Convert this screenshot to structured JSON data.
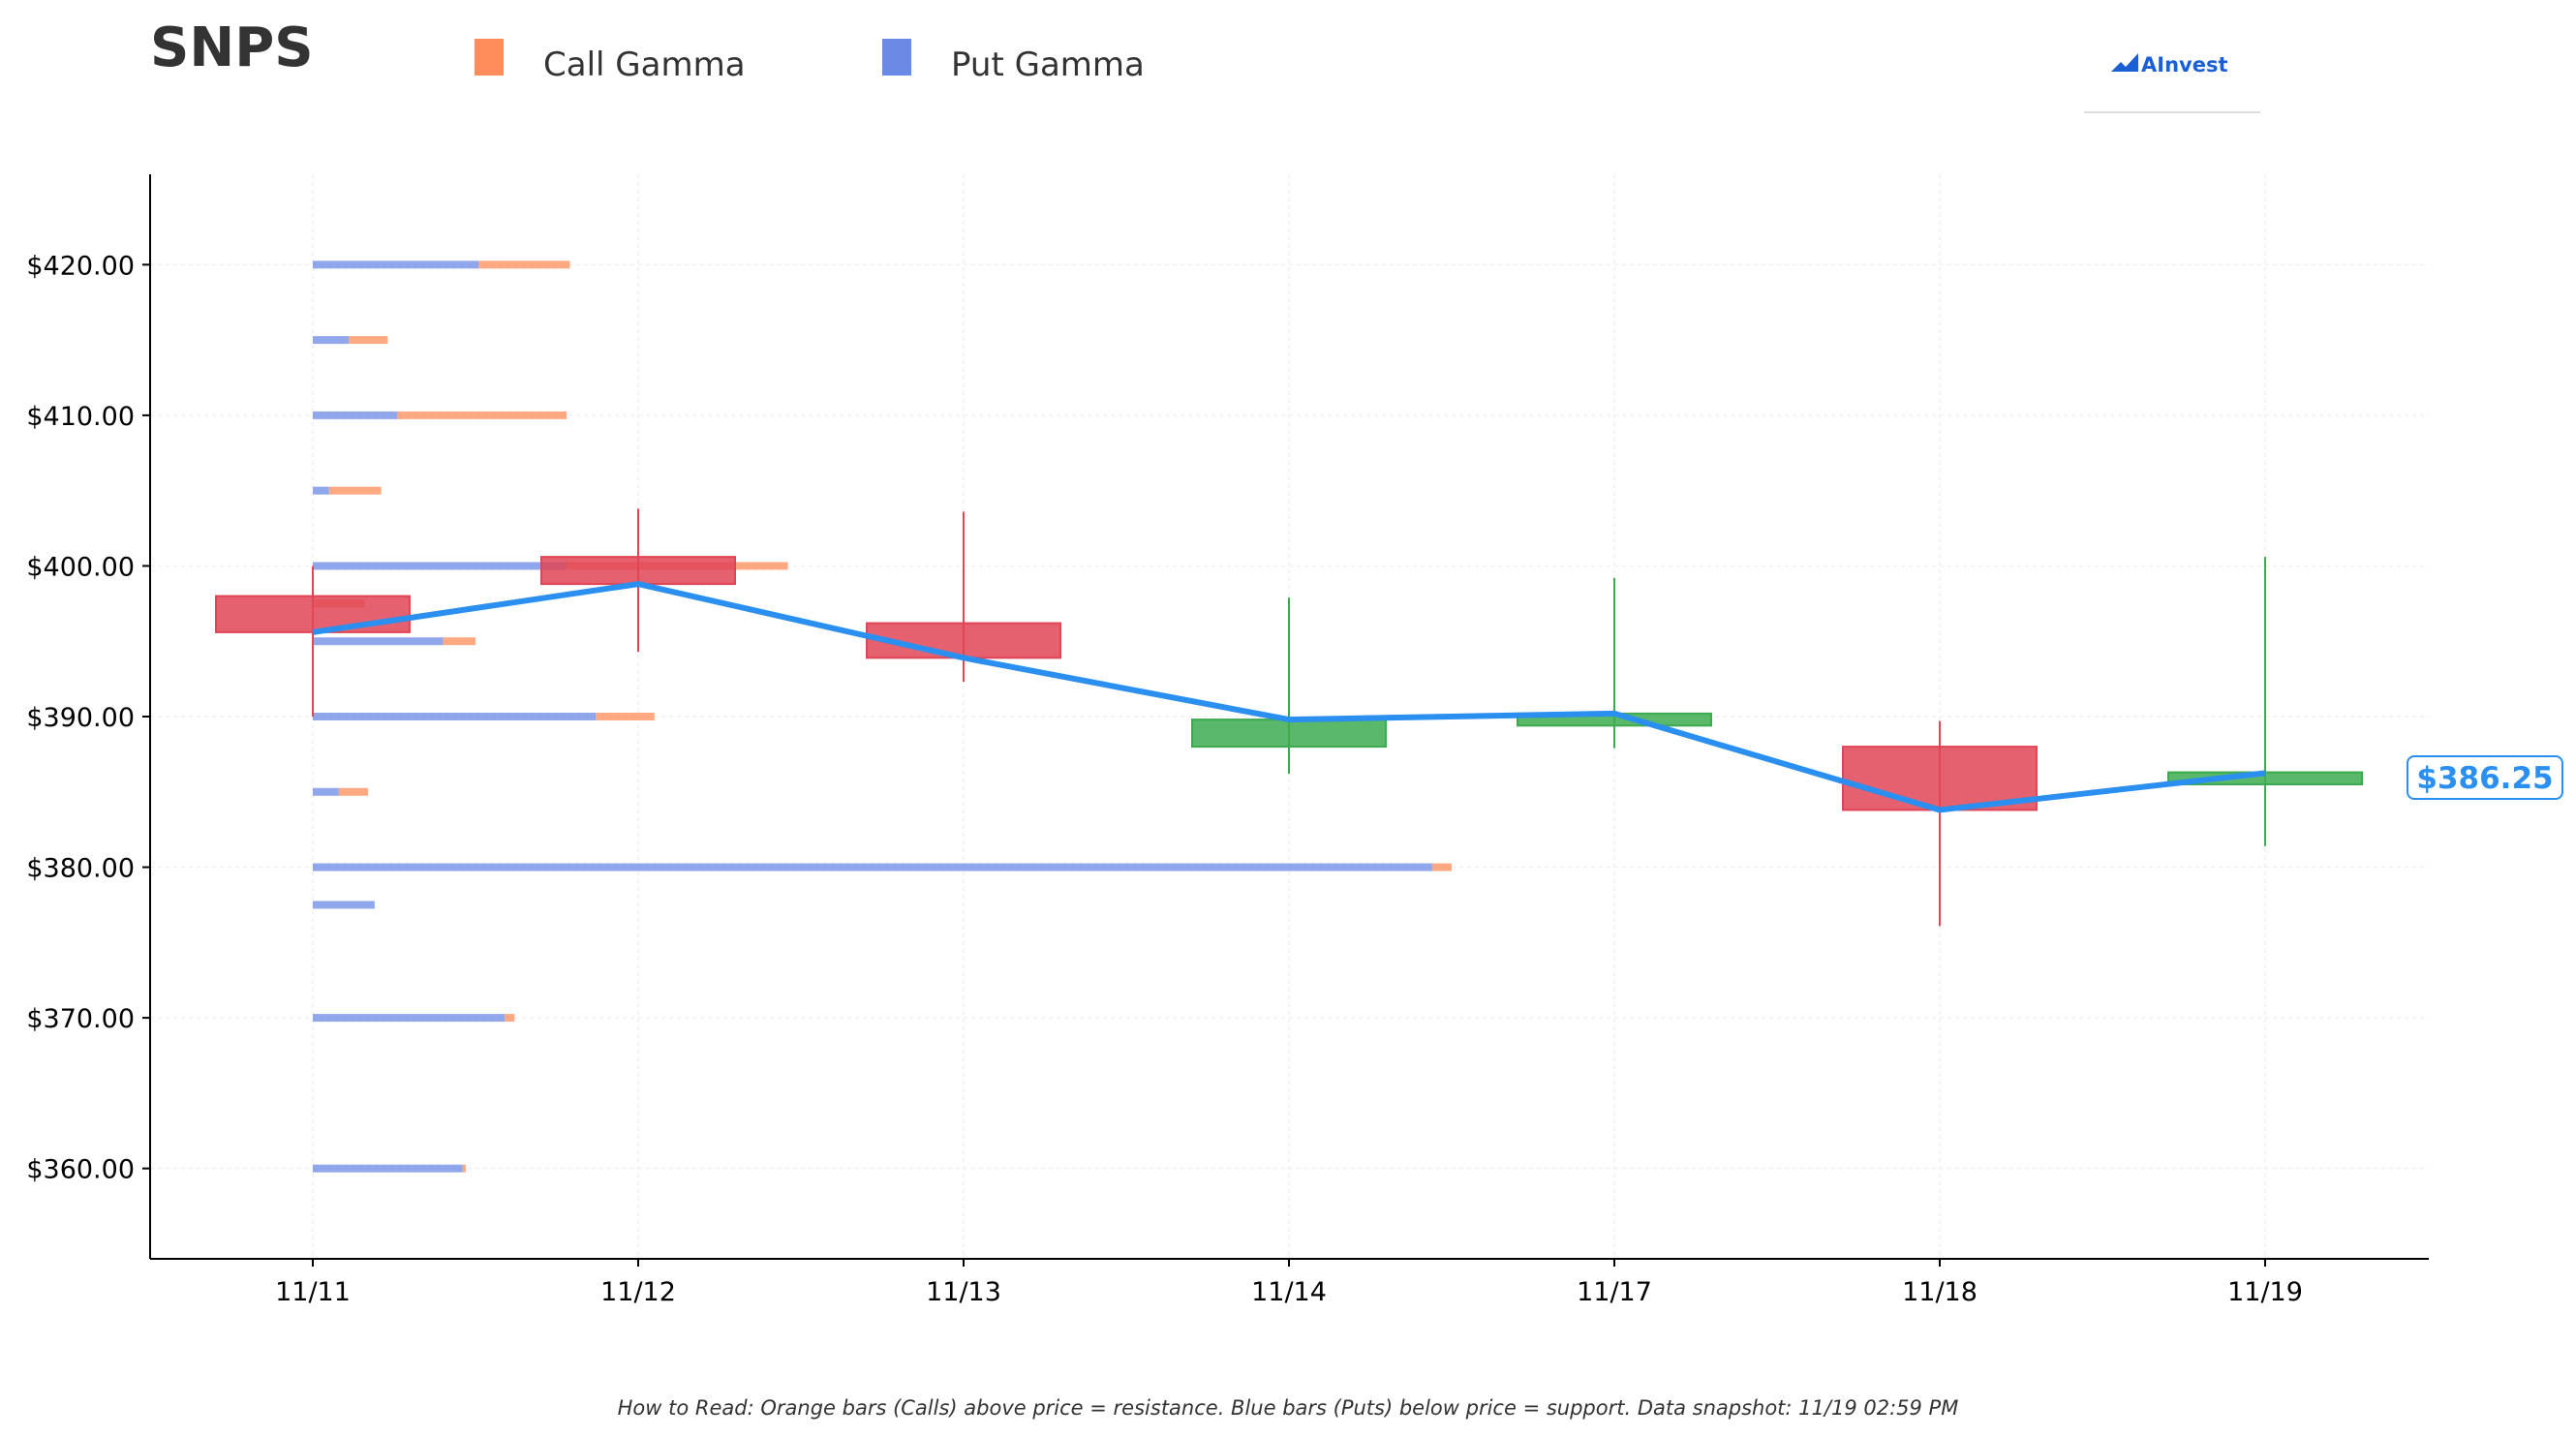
{
  "title": "SNPS",
  "legend": {
    "call_label": "Call Gamma",
    "put_label": "Put Gamma",
    "call_color": "#ff8c5a",
    "put_color": "#6b8ae6"
  },
  "logo": {
    "text": "AInvest"
  },
  "footnote": "How to Read: Orange bars (Calls) above price = resistance. Blue bars (Puts) below price = support. Data snapshot: 11/19 02:59 PM",
  "current_price_label": "$386.25",
  "chart_data": {
    "type": "candlestick",
    "title": "SNPS",
    "categories": [
      "11/11",
      "11/12",
      "11/13",
      "11/14",
      "11/17",
      "11/18",
      "11/19"
    ],
    "ylim": [
      354,
      426
    ],
    "yticks": [
      360,
      370,
      380,
      390,
      400,
      410,
      420
    ],
    "ytick_labels": [
      "$360.00",
      "$370.00",
      "$380.00",
      "$390.00",
      "$400.00",
      "$410.00",
      "$420.00"
    ],
    "grid": true,
    "legend_placement": "top",
    "colors": {
      "up": "#3cab4f",
      "down": "#e04556",
      "line": "#2b8fef"
    },
    "candles": [
      {
        "date": "11/11",
        "open": 398.0,
        "high": 400.0,
        "low": 390.0,
        "close": 395.6
      },
      {
        "date": "11/12",
        "open": 400.6,
        "high": 403.8,
        "low": 394.3,
        "close": 398.8
      },
      {
        "date": "11/13",
        "open": 396.2,
        "high": 403.6,
        "low": 392.3,
        "close": 393.9
      },
      {
        "date": "11/14",
        "open": 388.0,
        "high": 397.9,
        "low": 386.2,
        "close": 389.8
      },
      {
        "date": "11/17",
        "open": 389.4,
        "high": 399.2,
        "low": 387.9,
        "close": 390.2
      },
      {
        "date": "11/18",
        "open": 388.0,
        "high": 389.7,
        "low": 376.1,
        "close": 383.8
      },
      {
        "date": "11/19",
        "open": 385.5,
        "high": 400.6,
        "low": 381.4,
        "close": 386.3
      }
    ],
    "close_line": [
      395.6,
      398.8,
      393.9,
      389.8,
      390.2,
      383.8,
      386.25
    ],
    "gamma": {
      "strikes": [
        420,
        415,
        410,
        405,
        400,
        397.5,
        395,
        390,
        385,
        380,
        377.5,
        370,
        360
      ],
      "put": [
        5.1,
        1.1,
        2.6,
        0.5,
        7.8,
        0.0,
        4.0,
        8.7,
        0.8,
        34.4,
        1.9,
        5.9,
        4.6
      ],
      "call": [
        2.8,
        1.2,
        5.2,
        1.6,
        6.8,
        1.6,
        1.0,
        1.8,
        0.9,
        0.6,
        0.0,
        0.3,
        0.1
      ]
    }
  }
}
